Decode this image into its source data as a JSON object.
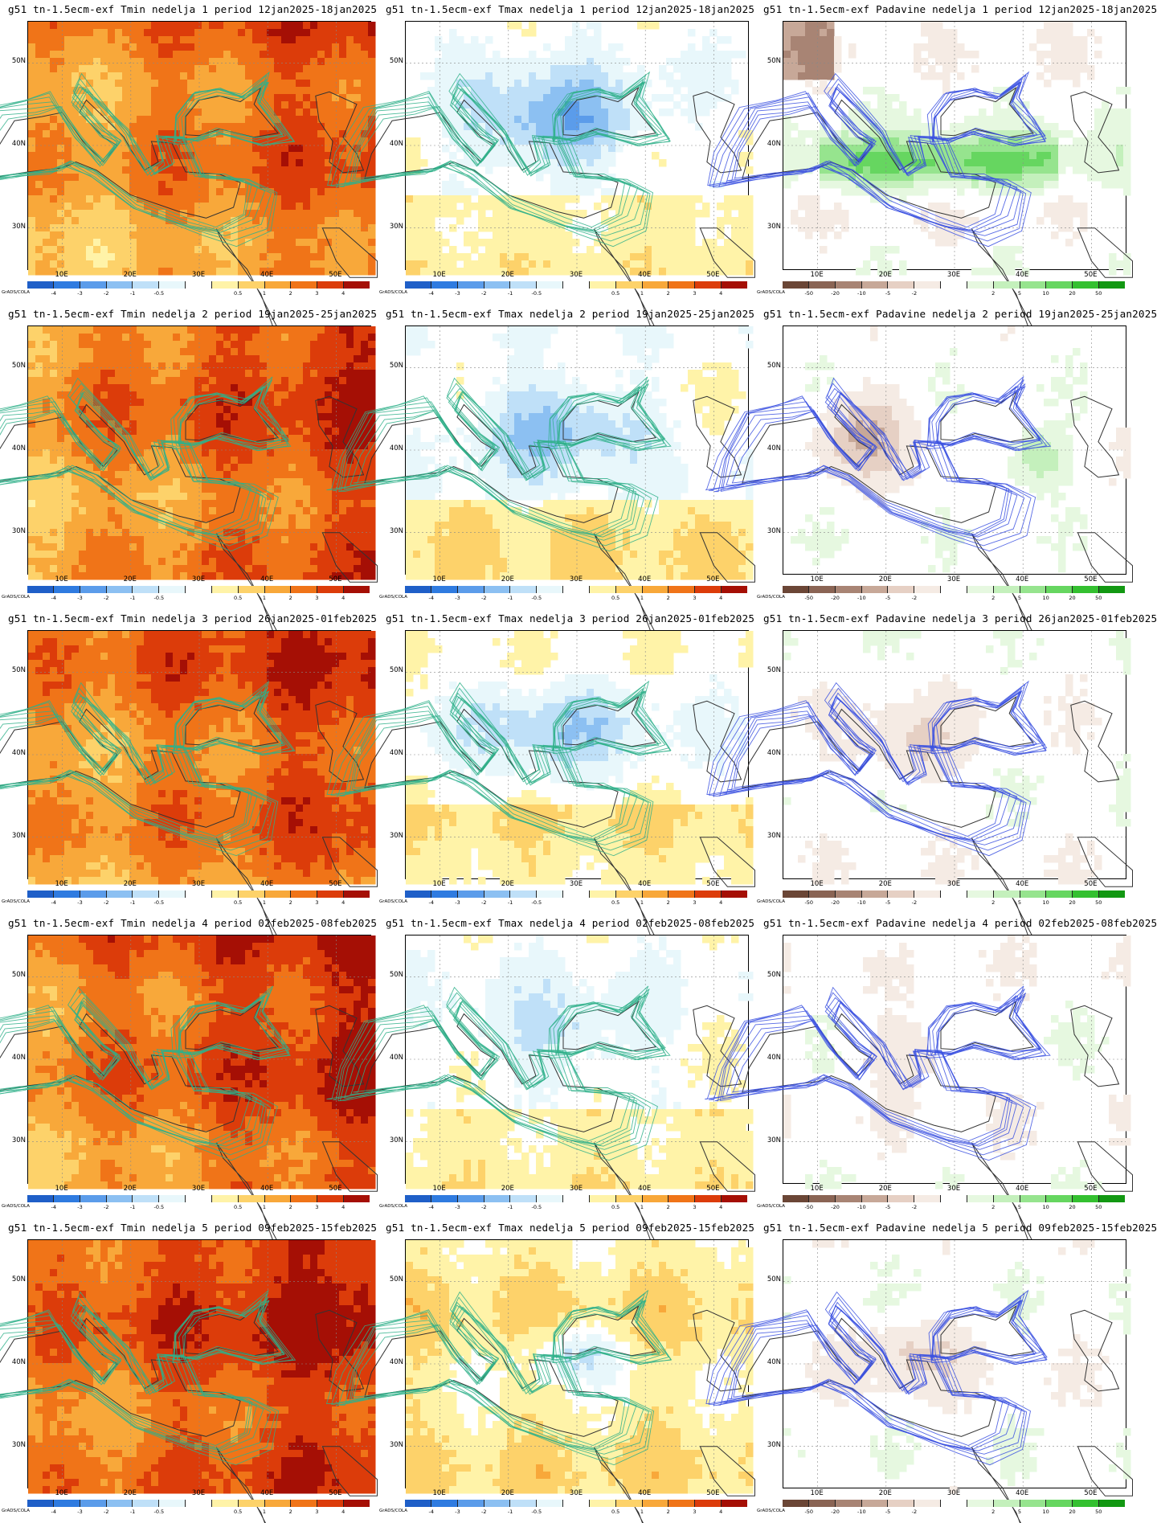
{
  "credit": "GrADS/COLA",
  "lat_labels": [
    "50N",
    "40N",
    "30N"
  ],
  "lon_labels": [
    "10E",
    "20E",
    "30E",
    "40E",
    "50E"
  ],
  "colorbars": {
    "temp": {
      "labels": [
        "-4",
        "-3",
        "-2",
        "-1",
        "-0.5",
        "0.5",
        "1",
        "2",
        "3",
        "4"
      ],
      "colors": [
        "#1f5fc8",
        "#2f7be0",
        "#5b9cea",
        "#8cc0f2",
        "#bfe0f8",
        "#e8f7fb",
        "#ffffff",
        "#fff3a8",
        "#fdd26a",
        "#f8a83a",
        "#f07418",
        "#dc3c0a",
        "#a50f05"
      ]
    },
    "precip": {
      "labels": [
        "-50",
        "-20",
        "-10",
        "-5",
        "-2",
        "2",
        "5",
        "10",
        "20",
        "50"
      ],
      "colors": [
        "#6b4636",
        "#8a6454",
        "#a88474",
        "#c7a898",
        "#e6d0c4",
        "#f5ebe4",
        "#ffffff",
        "#e6f8e0",
        "#c4f0bc",
        "#96e48e",
        "#66d660",
        "#34c030",
        "#129812"
      ]
    }
  },
  "rows": [
    {
      "week": "1",
      "panels": [
        {
          "title": "g51 tn-1.5ecm-exf Tmin nedelja 1 period 12jan2025-18jan2025",
          "kind": "temp",
          "palette": "warm",
          "intensity": 0.55
        },
        {
          "title": "g51 tn-1.5ecm-exf Tmax nedelja 1 period 12jan2025-18jan2025",
          "kind": "temp",
          "palette": "cold",
          "intensity": 0.6
        },
        {
          "title": "g51 tn-1.5ecm-exf Padavine nedelja 1 period 12jan2025-18jan2025",
          "kind": "precip",
          "palette": "wet",
          "intensity": 0.6
        }
      ]
    },
    {
      "week": "2",
      "panels": [
        {
          "title": "g51 tn-1.5ecm-exf Tmin nedelja 2 period 19jan2025-25jan2025",
          "kind": "temp",
          "palette": "warm",
          "intensity": 0.65
        },
        {
          "title": "g51 tn-1.5ecm-exf Tmax nedelja 2 period 19jan2025-25jan2025",
          "kind": "temp",
          "palette": "cold",
          "intensity": 0.5
        },
        {
          "title": "g51 tn-1.5ecm-exf Padavine nedelja 2 period 19jan2025-25jan2025",
          "kind": "precip",
          "palette": "mixed",
          "intensity": 0.5
        }
      ]
    },
    {
      "week": "3",
      "panels": [
        {
          "title": "g51 tn-1.5ecm-exf Tmin nedelja 3 period 26jan2025-01feb2025",
          "kind": "temp",
          "palette": "warm",
          "intensity": 0.65
        },
        {
          "title": "g51 tn-1.5ecm-exf Tmax nedelja 3 period 26jan2025-01feb2025",
          "kind": "temp",
          "palette": "cold",
          "intensity": 0.35
        },
        {
          "title": "g51 tn-1.5ecm-exf Padavine nedelja 3 period 26jan2025-01feb2025",
          "kind": "precip",
          "palette": "dry",
          "intensity": 0.4
        }
      ]
    },
    {
      "week": "4",
      "panels": [
        {
          "title": "g51 tn-1.5ecm-exf Tmin nedelja 4 period 02feb2025-08feb2025",
          "kind": "temp",
          "palette": "warm",
          "intensity": 0.75
        },
        {
          "title": "g51 tn-1.5ecm-exf Tmax nedelja 4 period 02feb2025-08feb2025",
          "kind": "temp",
          "palette": "cold",
          "intensity": 0.3
        },
        {
          "title": "g51 tn-1.5ecm-exf Padavine nedelja 4 period 02feb2025-08feb2025",
          "kind": "precip",
          "palette": "dry",
          "intensity": 0.3
        }
      ]
    },
    {
      "week": "5",
      "panels": [
        {
          "title": "g51 tn-1.5ecm-exf Tmin nedelja 5 period 09feb2025-15feb2025",
          "kind": "temp",
          "palette": "warm",
          "intensity": 0.85
        },
        {
          "title": "g51 tn-1.5ecm-exf Tmax nedelja 5 period 09feb2025-15feb2025",
          "kind": "temp",
          "palette": "warmlight",
          "intensity": 0.4
        },
        {
          "title": "g51 tn-1.5ecm-exf Padavine nedelja 5 period 09feb2025-15feb2025",
          "kind": "precip",
          "palette": "dry",
          "intensity": 0.4
        }
      ]
    }
  ]
}
